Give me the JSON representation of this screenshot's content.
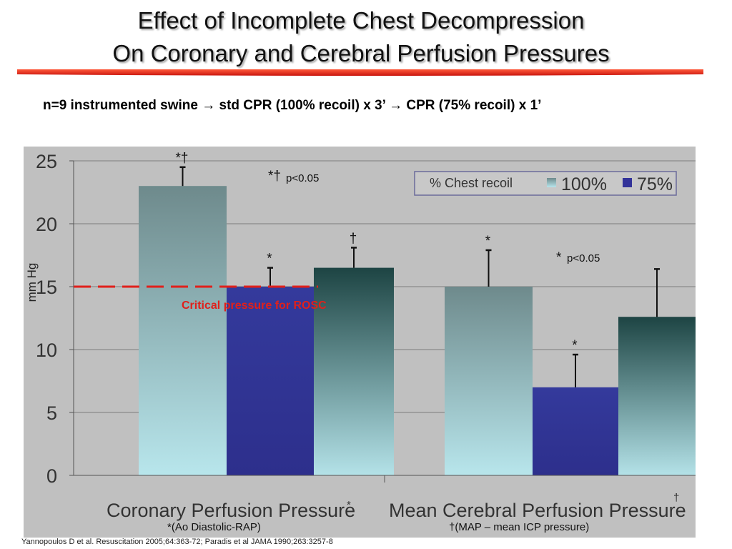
{
  "slide": {
    "title_line1": "Effect of Incomplete Chest Decompression",
    "title_line2": "On Coronary and Cerebral Perfusion Pressures",
    "subtitle": "n=9 instrumented swine → std CPR (100% recoil) x 3’ → CPR (75% recoil) x 1’",
    "citation": "Yannopoulos D et al.  Resuscitation 2005;64:363-72; Paradis et al JAMA 1990;263:3257-8",
    "accent_color": "#e8251c"
  },
  "chart_data": {
    "type": "bar",
    "ylabel": "mm Hg",
    "ylim": [
      0,
      25
    ],
    "yticks": [
      0,
      5,
      10,
      15,
      20,
      25
    ],
    "grid": true,
    "legend_title": "% Chest recoil",
    "legend_placement": "top-right",
    "categories": [
      {
        "label": "Coronary Perfusion Pressure",
        "superscript": "*",
        "footnote": "*(Ao Diastolic-RAP)"
      },
      {
        "label": "Mean Cerebral Perfusion Pressure",
        "superscript": "†",
        "footnote": "†(MAP – mean ICP pressure)"
      }
    ],
    "bars": [
      {
        "group": 0,
        "series": "100%",
        "value": 23.0,
        "error_top": 24.5,
        "mark": "*†"
      },
      {
        "group": 0,
        "series": "75%",
        "value": 15.0,
        "error_top": 16.5,
        "mark": "*"
      },
      {
        "group": 0,
        "series": "100%",
        "value": 16.5,
        "error_top": 18.1,
        "mark": "†"
      },
      {
        "group": 1,
        "series": "100%",
        "value": 15.0,
        "error_top": 17.9,
        "mark": "*"
      },
      {
        "group": 1,
        "series": "75%",
        "value": 7.0,
        "error_top": 9.6,
        "mark": "*"
      },
      {
        "group": 1,
        "series": "100%",
        "value": 12.6,
        "error_top": 16.4,
        "mark": ""
      }
    ],
    "series": [
      {
        "name": "100%",
        "color": "#9fc4c8"
      },
      {
        "name": "75%",
        "color": "#333399"
      }
    ],
    "annotations": [
      {
        "symbol": "*†",
        "text": "p<0.05"
      },
      {
        "symbol": "*",
        "text": "p<0.05"
      }
    ],
    "reference_line": {
      "value": 15,
      "label": "Critical pressure for ROSC",
      "color": "#e0201b"
    }
  }
}
